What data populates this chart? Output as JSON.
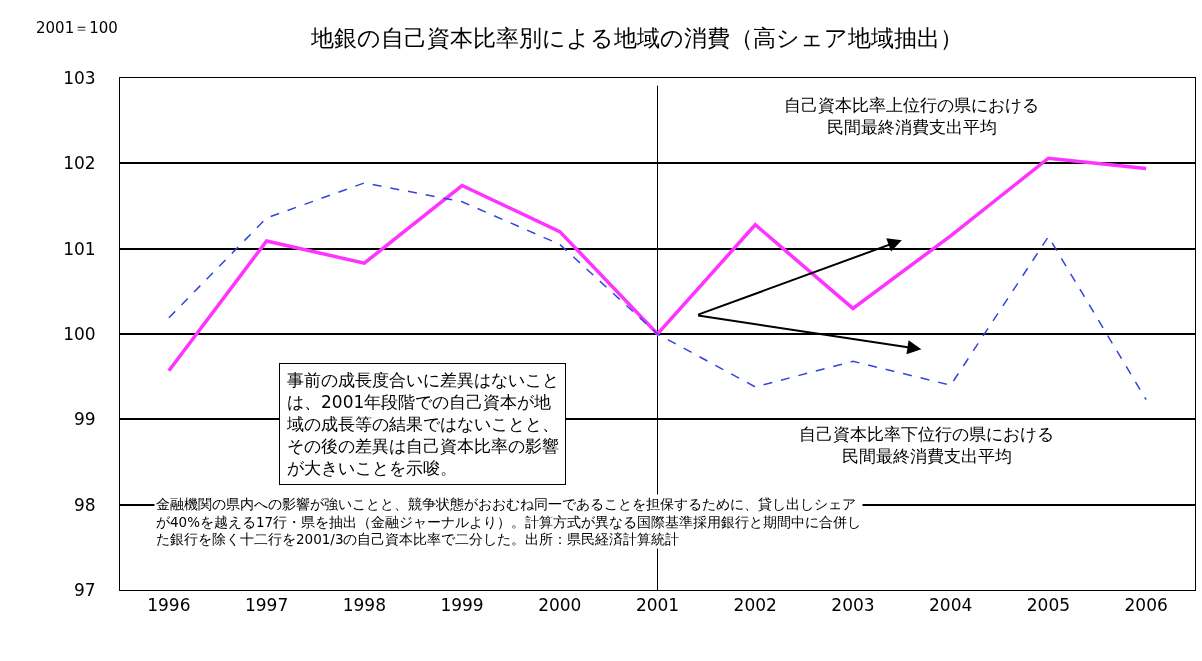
{
  "chart_data": {
    "type": "line",
    "title": "地銀の自己資本比率別による地域の消費（高シェア地域抽出）",
    "ylabel": "2001＝100",
    "categories": [
      "1996",
      "1997",
      "1998",
      "1999",
      "2000",
      "2001",
      "2002",
      "2003",
      "2004",
      "2005",
      "2006"
    ],
    "series": [
      {
        "name": "自己資本比率上位行の県における民間最終消費支出平均",
        "color": "#ff33ff",
        "line_style": "solid",
        "values": [
          99.57,
          101.09,
          100.83,
          101.74,
          101.2,
          100,
          101.28,
          100.3,
          101.15,
          102.06,
          101.94
        ]
      },
      {
        "name": "自己資本比率下位行の県における民間最終消費支出平均",
        "color": "#3344dd",
        "line_style": "dashed",
        "values": [
          100.19,
          101.36,
          101.77,
          101.55,
          101.05,
          100,
          99.38,
          99.68,
          99.4,
          101.14,
          99.23
        ]
      }
    ],
    "ylim": [
      97,
      103
    ],
    "yticks": [
      97,
      98,
      99,
      100,
      101,
      102,
      103
    ],
    "grid": "y",
    "legend": false,
    "marker": "none",
    "ref_lines": [
      {
        "axis": "x",
        "value": "2001",
        "color": "#000000",
        "line_style": "solid"
      }
    ],
    "annotations": [
      "事前の成長度合いに差異はないことは、2001年段階での自己資本が地域の成長等の結果ではないことと、その後の差異は自己資本比率の影響が大きいことを示唆。",
      "金融機関の県内への影響が強いことと、競争状態がおおむね同一であることを担保するために、貸し出しシェアが40%を越える17行・県を抽出（金融ジャーナルより）。計算方式が異なる国際基準採用銀行と期間中に合併した銀行を除く十二行を2001/3の自己資本比率で二分した。出所：県民経済計算統計"
    ]
  }
}
